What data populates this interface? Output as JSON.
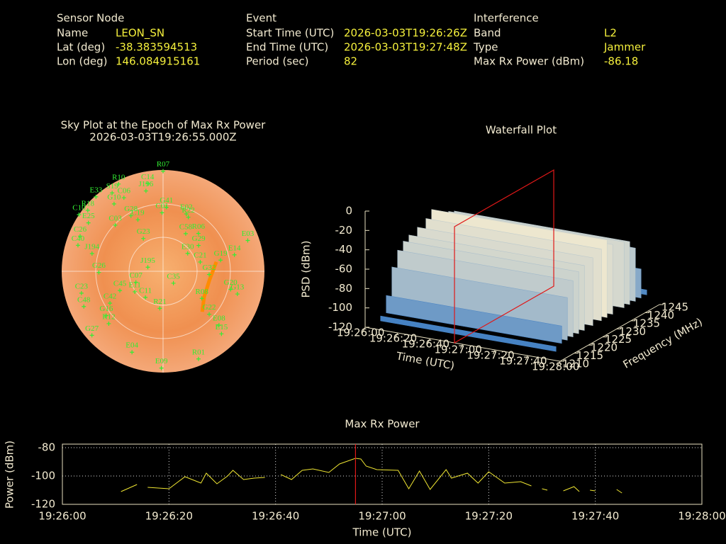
{
  "header": {
    "sensor": {
      "title": "Sensor Node",
      "rows": [
        [
          "Name",
          "LEON_SN"
        ],
        [
          "Lat (deg)",
          "-38.383594513"
        ],
        [
          "Lon (deg)",
          "146.084915161"
        ]
      ]
    },
    "event": {
      "title": "Event",
      "rows": [
        [
          "Start Time (UTC)",
          "2026-03-03T19:26:26Z"
        ],
        [
          "End Time (UTC)",
          "2026-03-03T19:27:48Z"
        ],
        [
          "Period (sec)",
          "82"
        ]
      ]
    },
    "interference": {
      "title": "Interference",
      "rows": [
        [
          "Band",
          "L2"
        ],
        [
          "Type",
          "Jammer"
        ],
        [
          "Max Rx Power (dBm)",
          "-86.18"
        ]
      ]
    }
  },
  "chart_data": [
    {
      "type": "polar",
      "title": "Sky Plot at the Epoch of Max Rx Power",
      "subtitle": "2026-03-03T19:26:55.000Z",
      "color": "#33ee33",
      "points": [
        {
          "name": "R07",
          "az": 0,
          "el": 1
        },
        {
          "name": "C14",
          "az": 350,
          "el": 11
        },
        {
          "name": "J196",
          "az": 348,
          "el": 17
        },
        {
          "name": "R10",
          "az": 333,
          "el": 3
        },
        {
          "name": "S19",
          "az": 327,
          "el": 7
        },
        {
          "name": "E33",
          "az": 318,
          "el": 1
        },
        {
          "name": "C06",
          "az": 332,
          "el": 16
        },
        {
          "name": "G10",
          "az": 324,
          "el": 16
        },
        {
          "name": "C10",
          "az": 304,
          "el": 0
        },
        {
          "name": "R18",
          "az": 309,
          "el": 4
        },
        {
          "name": "E25",
          "az": 303,
          "el": 11
        },
        {
          "name": "C03",
          "az": 314,
          "el": 31
        },
        {
          "name": "G28",
          "az": 330,
          "el": 33
        },
        {
          "name": "C01",
          "az": 359,
          "el": 38
        },
        {
          "name": "G41",
          "az": 3,
          "el": 33
        },
        {
          "name": "E02",
          "az": 22,
          "el": 35
        },
        {
          "name": "R22",
          "az": 25,
          "el": 37
        },
        {
          "name": "C19",
          "az": 334,
          "el": 39
        },
        {
          "name": "G23",
          "az": 329,
          "el": 56
        },
        {
          "name": "R06",
          "az": 43,
          "el": 44
        },
        {
          "name": "C58",
          "az": 31,
          "el": 51
        },
        {
          "name": "G29",
          "az": 54,
          "el": 51
        },
        {
          "name": "E30",
          "az": 54,
          "el": 63
        },
        {
          "name": "C21",
          "az": 76,
          "el": 56
        },
        {
          "name": "G19",
          "az": 79,
          "el": 38
        },
        {
          "name": "E03",
          "az": 70,
          "el": 10
        },
        {
          "name": "E14",
          "az": 77,
          "el": 25
        },
        {
          "name": "C26",
          "az": 293,
          "el": 10
        },
        {
          "name": "C40",
          "az": 287,
          "el": 11
        },
        {
          "name": "J194",
          "az": 284,
          "el": 25
        },
        {
          "name": "J195",
          "az": 285,
          "el": 76
        },
        {
          "name": "G26",
          "az": 269,
          "el": 33
        },
        {
          "name": "C07",
          "az": 248,
          "el": 64
        },
        {
          "name": "E11",
          "az": 234,
          "el": 59
        },
        {
          "name": "C45",
          "az": 246,
          "el": 48
        },
        {
          "name": "C11",
          "az": 214,
          "el": 62
        },
        {
          "name": "C35",
          "az": 139,
          "el": 76
        },
        {
          "name": "C23",
          "az": 255,
          "el": 15
        },
        {
          "name": "C48",
          "az": 246,
          "el": 13
        },
        {
          "name": "C42",
          "az": 239,
          "el": 35
        },
        {
          "name": "G16",
          "az": 232,
          "el": 26
        },
        {
          "name": "R12",
          "az": 226,
          "el": 23
        },
        {
          "name": "R21",
          "az": 185,
          "el": 57
        },
        {
          "name": "G32",
          "az": 94,
          "el": 49
        },
        {
          "name": "G20",
          "az": 105,
          "el": 28
        },
        {
          "name": "G13",
          "az": 107,
          "el": 21
        },
        {
          "name": "R08",
          "az": 125,
          "el": 48
        },
        {
          "name": "G22",
          "az": 133,
          "el": 34
        },
        {
          "name": "E08",
          "az": 134,
          "el": 21
        },
        {
          "name": "E15",
          "az": 137,
          "el": 14
        },
        {
          "name": "G27",
          "az": 228,
          "el": 5
        },
        {
          "name": "E04",
          "az": 201,
          "el": 13
        },
        {
          "name": "R01",
          "az": 158,
          "el": 6
        },
        {
          "name": "E09",
          "az": 181,
          "el": 4
        }
      ],
      "track": {
        "color": "#ff8c00",
        "az": [
          80,
          100,
          122,
          136
        ],
        "el": [
          42,
          48,
          47,
          40
        ]
      }
    },
    {
      "type": "surface",
      "title": "Waterfall Plot",
      "xlabel": "Time (UTC)",
      "ylabel": "Frequency (MHz)",
      "zlabel": "PSD (dBm)",
      "xlim": [
        "19:26:00",
        "19:28:00"
      ],
      "xticks": [
        "19:26:00",
        "19:26:20",
        "19:26:40",
        "19:27:00",
        "19:27:20",
        "19:27:40",
        "19:28:00"
      ],
      "ylim": [
        1210,
        1245
      ],
      "yticks": [
        1210,
        1215,
        1220,
        1225,
        1230,
        1235,
        1240,
        1245
      ],
      "zlim": [
        -120,
        0
      ],
      "zticks": [
        0,
        -20,
        -40,
        -60,
        -80,
        -100,
        -120
      ],
      "frequency": [
        1212,
        1214,
        1216,
        1218,
        1220,
        1222,
        1225,
        1228,
        1230,
        1232,
        1236,
        1238,
        1240,
        1242,
        1244
      ],
      "psd": [
        -115,
        -92,
        -66,
        -52,
        -46,
        -43,
        -40,
        -36,
        -30,
        -38,
        -42,
        -45,
        -55,
        -80,
        -105
      ],
      "marker": "19:26:55",
      "marker_color": "#e01818"
    },
    {
      "type": "line",
      "title": "Max Rx Power",
      "xlabel": "Time (UTC)",
      "ylabel": "Power (dBm)",
      "xlim": [
        "19:26:00",
        "19:28:00"
      ],
      "xticks": [
        "19:26:00",
        "19:26:20",
        "19:26:40",
        "19:27:00",
        "19:27:20",
        "19:27:40",
        "19:28:00"
      ],
      "ylim": [
        -120,
        -77.5
      ],
      "yticks": [
        -80,
        -100,
        -120
      ],
      "grid": true,
      "color": "#f0e632",
      "marker": "19:26:55",
      "marker_color": "#e01818",
      "x": [
        "19:26:11",
        "19:26:14",
        "19:26:15",
        "19:26:16",
        "19:26:20",
        "19:26:23",
        "19:26:26",
        "19:26:27",
        "19:26:29",
        "19:26:31",
        "19:26:32",
        "19:26:34",
        "19:26:36",
        "19:26:38",
        "19:26:39",
        "19:26:41",
        "19:26:43",
        "19:26:45",
        "19:26:47",
        "19:26:50",
        "19:26:52",
        "19:26:55",
        "19:26:56",
        "19:26:57",
        "19:26:59",
        "19:27:03",
        "19:27:05",
        "19:27:07",
        "19:27:09",
        "19:27:12",
        "19:27:13",
        "19:27:16",
        "19:27:18",
        "19:27:20",
        "19:27:23",
        "19:27:26",
        "19:27:28",
        "19:27:29",
        "19:27:30",
        "19:27:31",
        "19:27:32",
        "19:27:34",
        "19:27:36",
        "19:27:37",
        "19:27:38",
        "19:27:39",
        "19:27:40",
        "19:27:42",
        "19:27:44",
        "19:27:45"
      ],
      "values": [
        -111,
        -106,
        null,
        -108,
        -109,
        -100.5,
        -105,
        -98,
        -105.5,
        -100,
        -96,
        -102.5,
        -101.5,
        -101,
        null,
        -99,
        -102.5,
        -96,
        -95,
        -97.5,
        -91.5,
        -87.5,
        -88,
        -93,
        -95.5,
        -96,
        -109,
        -96.5,
        -109.5,
        -95.5,
        -101.5,
        -98,
        -105,
        -97,
        -105,
        -104,
        -107,
        null,
        -109,
        -110,
        null,
        -110.5,
        -107.5,
        -111,
        null,
        -110,
        -110.5,
        null,
        -109.5,
        -112
      ]
    }
  ]
}
